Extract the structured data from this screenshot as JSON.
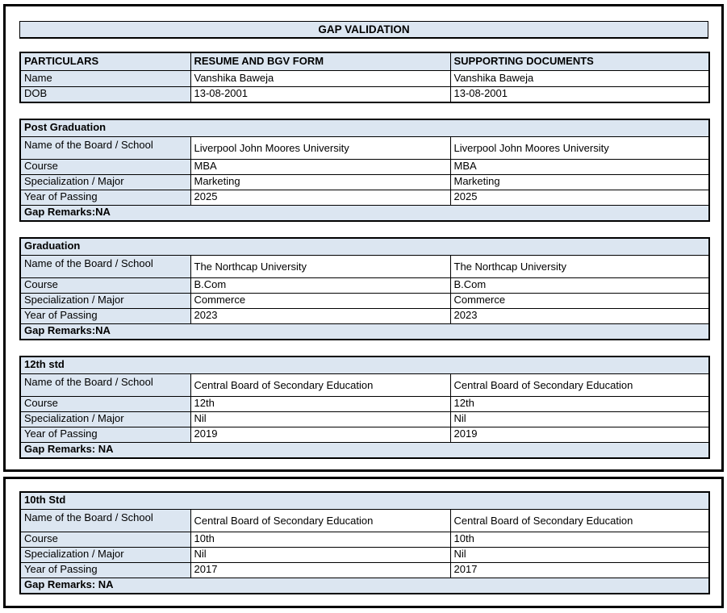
{
  "title": "GAP VALIDATION",
  "colors": {
    "header_bg": "#dce6f1",
    "border": "#000000",
    "page_bg": "#ffffff",
    "text": "#000000"
  },
  "particulars": {
    "headers": [
      "PARTICULARS",
      "RESUME AND BGV FORM",
      "SUPPORTING DOCUMENTS"
    ],
    "rows": [
      {
        "label": "Name",
        "resume": "Vanshika Baweja",
        "supporting": "Vanshika Baweja"
      },
      {
        "label": "DOB",
        "resume": "13-08-2001",
        "supporting": "13-08-2001"
      }
    ]
  },
  "sections": [
    {
      "title": "Post Graduation",
      "rows": [
        {
          "label": "Name of the Board / School",
          "resume": "Liverpool John Moores University",
          "supporting": "Liverpool John Moores University"
        },
        {
          "label": "Course",
          "resume": "MBA",
          "supporting": "MBA"
        },
        {
          "label": "Specialization / Major",
          "resume": "Marketing",
          "supporting": "Marketing"
        },
        {
          "label": "Year of Passing",
          "resume": "2025",
          "supporting": "2025"
        }
      ],
      "gap_remarks": "Gap Remarks:NA"
    },
    {
      "title": "Graduation",
      "rows": [
        {
          "label": "Name of the Board / School",
          "resume": "The Northcap University",
          "supporting": "The Northcap University"
        },
        {
          "label": "Course",
          "resume": "B.Com",
          "supporting": "B.Com"
        },
        {
          "label": "Specialization / Major",
          "resume": "Commerce",
          "supporting": "Commerce"
        },
        {
          "label": "Year of Passing",
          "resume": "2023",
          "supporting": "2023"
        }
      ],
      "gap_remarks": "Gap Remarks:NA"
    },
    {
      "title": "12th std",
      "rows": [
        {
          "label": "Name of the Board / School",
          "resume": "Central Board of Secondary Education",
          "supporting": "Central Board of Secondary Education"
        },
        {
          "label": "Course",
          "resume": "12th",
          "supporting": "12th"
        },
        {
          "label": "Specialization / Major",
          "resume": "Nil",
          "supporting": "Nil"
        },
        {
          "label": "Year of Passing",
          "resume": "2019",
          "supporting": "2019"
        }
      ],
      "gap_remarks": "Gap Remarks: NA"
    },
    {
      "title": "10th Std",
      "rows": [
        {
          "label": "Name of the Board / School",
          "resume": "Central Board of Secondary Education",
          "supporting": "Central Board of Secondary Education"
        },
        {
          "label": "Course",
          "resume": "10th",
          "supporting": "10th"
        },
        {
          "label": "Specialization / Major",
          "resume": "Nil",
          "supporting": "Nil"
        },
        {
          "label": "Year of Passing",
          "resume": "2017",
          "supporting": "2017"
        }
      ],
      "gap_remarks": "Gap Remarks: NA"
    }
  ]
}
